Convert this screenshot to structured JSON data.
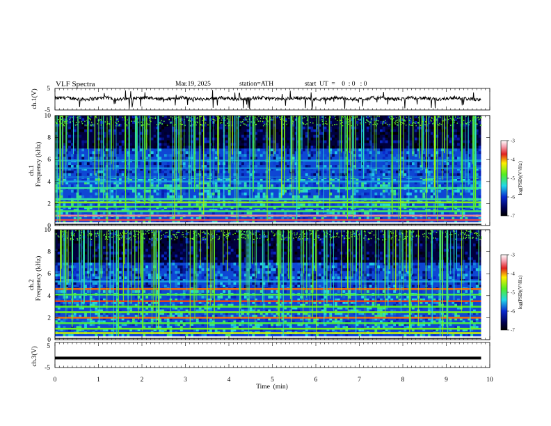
{
  "header": {
    "title": "VLF  Spectra",
    "date": "Mar.19, 2025",
    "station": "station=ATH",
    "start": "start  UT  =    0  : 0   : 0"
  },
  "colors": {
    "black": "#000000",
    "blue": "#0a2ad0",
    "cyan": "#22d8e8",
    "green": "#55ee22",
    "yellow": "#ffee00",
    "red": "#e02020",
    "pink": "#ffe0e8"
  },
  "chart_data": [
    {
      "type": "line",
      "ylabel": "ch.1(V)",
      "ylim": [
        -5,
        5
      ],
      "yticks": [
        "5",
        "-5"
      ],
      "xlim": [
        0,
        10
      ],
      "description_of_trace": "noisy waveform near 0 V with occasional downward spikes",
      "level": 0.3
    },
    {
      "type": "heatmap",
      "channel": "ch.1",
      "ylabel": "Frequency  (kHz)",
      "ylim": [
        0,
        10
      ],
      "yticks": [
        "0",
        "2",
        "4",
        "6",
        "8",
        "10"
      ],
      "xlim": [
        0,
        10
      ],
      "data_end_min": 9.8,
      "colorbar": {
        "label": "log(PSD)(V²/Hz)",
        "ticks": [
          "-3",
          "-4",
          "-5",
          "-6",
          "-7"
        ],
        "range": [
          -7,
          -3
        ]
      },
      "bands_khz": [
        {
          "f": 0.5,
          "psd": -3.6
        },
        {
          "f": 0.9,
          "psd": -3.4
        },
        {
          "f": 1.3,
          "psd": -5.0
        },
        {
          "f": 1.7,
          "psd": -4.9
        },
        {
          "f": 2.1,
          "psd": -4.6
        },
        {
          "f": 2.4,
          "psd": -5.2
        },
        {
          "f": 3.4,
          "psd": -5.2
        },
        {
          "f": 4.0,
          "psd": -5.6
        },
        {
          "f": 4.4,
          "psd": -5.8
        },
        {
          "f": 5.2,
          "psd": -5.7
        },
        {
          "f": 5.9,
          "psd": -5.6
        }
      ]
    },
    {
      "type": "heatmap",
      "channel": "ch.2",
      "ylabel": "Frequency  (kHz)",
      "ylim": [
        0,
        10
      ],
      "yticks": [
        "0",
        "2",
        "4",
        "6",
        "8",
        "10"
      ],
      "xlim": [
        0,
        10
      ],
      "data_end_min": 9.8,
      "colorbar": {
        "label": "log(PSD)(V²/Hz)",
        "ticks": [
          "-3",
          "-4",
          "-5",
          "-6",
          "-7"
        ],
        "range": [
          -7,
          -3
        ]
      },
      "bands_khz": [
        {
          "f": 0.6,
          "psd": -4.4
        },
        {
          "f": 1.0,
          "psd": -4.7
        },
        {
          "f": 1.5,
          "psd": -4.9
        },
        {
          "f": 2.0,
          "psd": -3.9
        },
        {
          "f": 2.5,
          "psd": -4.7
        },
        {
          "f": 3.0,
          "psd": -4.8
        },
        {
          "f": 3.5,
          "psd": -3.8
        },
        {
          "f": 4.1,
          "psd": -4.9
        },
        {
          "f": 4.6,
          "psd": -3.9
        },
        {
          "f": 5.3,
          "psd": -5.6
        }
      ]
    },
    {
      "type": "line",
      "ylabel": "ch.3(V)",
      "ylim": [
        -5,
        5
      ],
      "yticks": [
        "5",
        "-5"
      ],
      "xlim": [
        0,
        10
      ],
      "level": -1.2,
      "xlabel": "Time  (min)",
      "xticks": [
        "0",
        "1",
        "2",
        "3",
        "4",
        "5",
        "6",
        "7",
        "8",
        "9",
        "10"
      ]
    }
  ]
}
